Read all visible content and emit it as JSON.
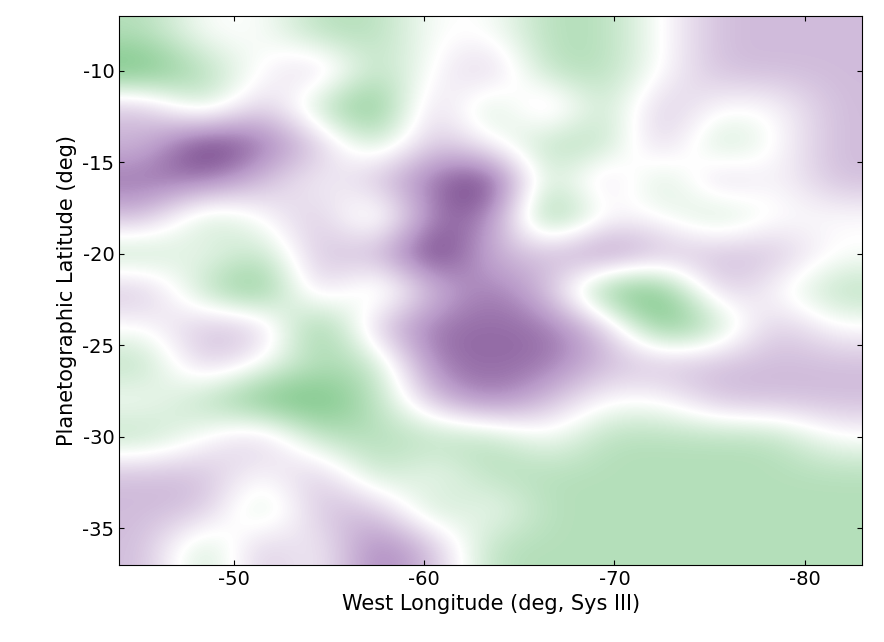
{
  "chart_data": {
    "type": "heatmap",
    "x_label": "West Longitude (deg, Sys III)",
    "y_label": "Planetographic Latitude (deg)",
    "xlim": [
      -44,
      -83
    ],
    "xticks": [
      -50,
      -60,
      -70,
      -80
    ],
    "ylim": [
      -37,
      -7
    ],
    "yticks": [
      -35,
      -30,
      -25,
      -20,
      -15,
      -10
    ],
    "x_edges": [
      -44,
      -47,
      -50,
      -53,
      -56,
      -59,
      -62,
      -65,
      -68,
      -71,
      -74,
      -77,
      -80,
      -83
    ],
    "y_edges": [
      -7,
      -9,
      -11,
      -13,
      -15,
      -17,
      -19,
      -21,
      -23,
      -25,
      -27,
      -29,
      -31,
      -33,
      -35,
      -37
    ],
    "color_range": [
      -3,
      3
    ],
    "cells": [
      [
        -1,
        0,
        0,
        -1,
        -1,
        0,
        0,
        -1,
        -1,
        0,
        1,
        1,
        1
      ],
      [
        -2,
        -1,
        0,
        1,
        -1,
        0,
        1,
        -1,
        -1,
        0,
        1,
        1,
        1
      ],
      [
        1,
        -1,
        1,
        -1,
        -2,
        1,
        -1,
        1,
        -1,
        1,
        0,
        0,
        1
      ],
      [
        1,
        3,
        2,
        1,
        -1,
        1,
        0,
        -1,
        -1,
        1,
        -1,
        0,
        1
      ],
      [
        2,
        2,
        1,
        0,
        1,
        2,
        3,
        -1,
        1,
        -1,
        1,
        0,
        1
      ],
      [
        1,
        -1,
        0,
        1,
        -1,
        2,
        2,
        -2,
        0,
        0,
        -1,
        0,
        0
      ],
      [
        -1,
        0,
        -1,
        1,
        1,
        3,
        1,
        1,
        2,
        1,
        1,
        1,
        0
      ],
      [
        1,
        -1,
        -2,
        1,
        -1,
        1,
        2,
        1,
        -2,
        -2,
        1,
        0,
        -1
      ],
      [
        0,
        1,
        1,
        -2,
        1,
        2,
        2,
        2,
        1,
        -2,
        -1,
        1,
        0
      ],
      [
        -1,
        1,
        0,
        -1,
        -1,
        2,
        2,
        2,
        1,
        1,
        1,
        1,
        1
      ],
      [
        0,
        -1,
        -2,
        -2,
        -1,
        1,
        2,
        1,
        0,
        0,
        1,
        1,
        1
      ],
      [
        -1,
        0,
        1,
        -1,
        -1,
        -1,
        -1,
        0,
        -1,
        -1,
        -1,
        -1,
        0
      ],
      [
        1,
        1,
        0,
        1,
        -1,
        0,
        -1,
        -1,
        -1,
        -1,
        -1,
        -1,
        -1
      ],
      [
        1,
        1,
        -1,
        1,
        1,
        -1,
        0,
        -1,
        -1,
        -1,
        -1,
        -1,
        -1
      ],
      [
        1,
        -1,
        1,
        0,
        2,
        1,
        -1,
        -1,
        -1,
        -1,
        -1,
        -1,
        -1
      ]
    ]
  }
}
